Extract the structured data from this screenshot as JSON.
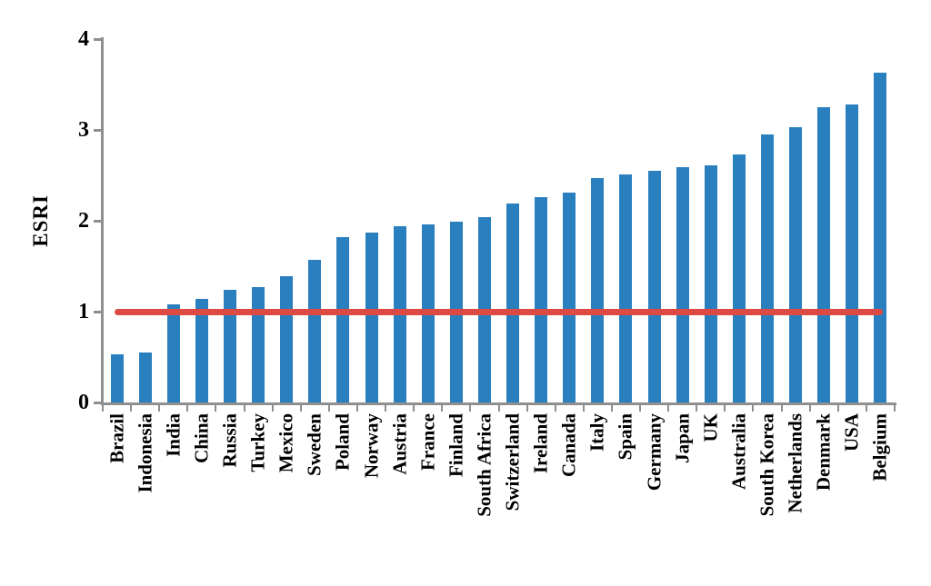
{
  "chart_data": {
    "type": "bar",
    "title": "",
    "ylabel": "ESRI",
    "xlabel": "",
    "ylim": [
      0,
      4
    ],
    "yticks": [
      "0",
      "1",
      "2",
      "3",
      "4"
    ],
    "grid": false,
    "legend": false,
    "categories": [
      "Brazil",
      "Indonesia",
      "India",
      "China",
      "Russia",
      "Turkey",
      "Mexico",
      "Sweden",
      "Poland",
      "Norway",
      "Austria",
      "France",
      "Finland",
      "South Africa",
      "Switzerland",
      "Ireland",
      "Canada",
      "Italy",
      "Spain",
      "Germany",
      "Japan",
      "UK",
      "Australia",
      "South Korea",
      "Netherlands",
      "Denmark",
      "USA",
      "Belgium"
    ],
    "values": [
      0.53,
      0.55,
      1.08,
      1.14,
      1.24,
      1.27,
      1.39,
      1.57,
      1.82,
      1.87,
      1.94,
      1.96,
      1.99,
      2.04,
      2.19,
      2.26,
      2.31,
      2.47,
      2.51,
      2.55,
      2.59,
      2.61,
      2.73,
      2.95,
      3.03,
      3.25,
      3.28,
      3.63
    ],
    "reference_line": {
      "value": 1,
      "color": "#dd4a43"
    },
    "colors": {
      "bar": "#2a7fbf",
      "axis": "#8f8f8f",
      "text": "#000000"
    }
  }
}
